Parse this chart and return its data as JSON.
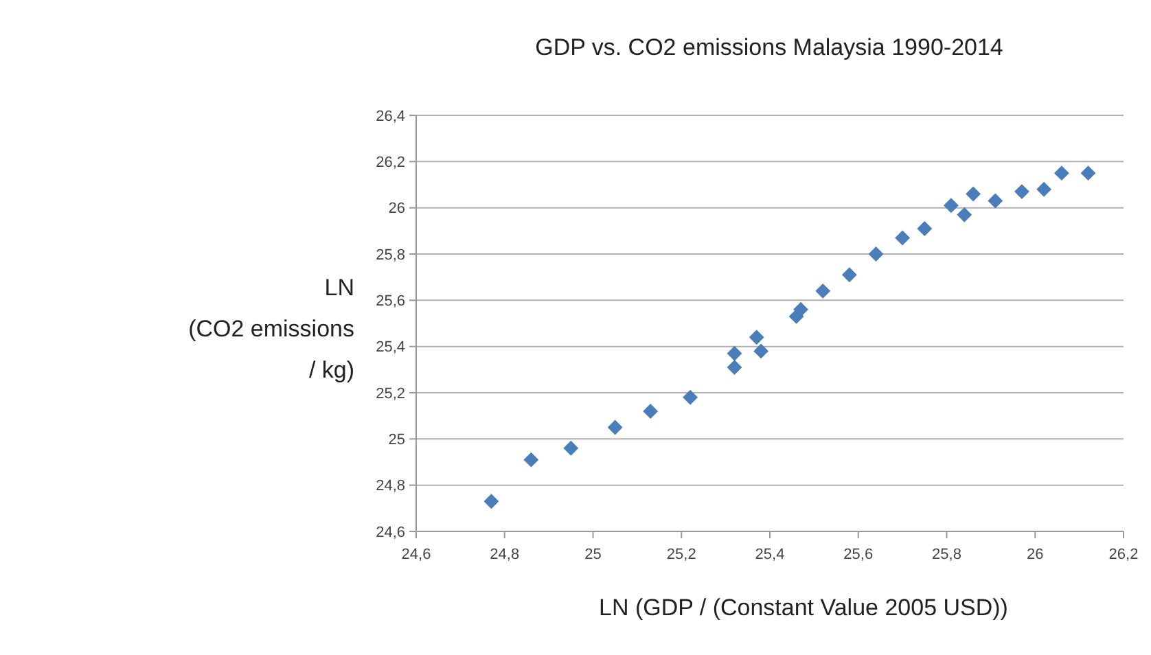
{
  "chart_data": {
    "type": "scatter",
    "title": "GDP vs. CO2 emissions Malaysia 1990-2014",
    "xlabel": "LN (GDP / (Constant Value 2005 USD))",
    "ylabel": "LN\n(CO2 emissions\n/ kg)",
    "x": [
      24.77,
      24.86,
      24.95,
      25.05,
      25.13,
      25.22,
      25.32,
      25.32,
      25.37,
      25.38,
      25.46,
      25.47,
      25.52,
      25.58,
      25.64,
      25.7,
      25.75,
      25.81,
      25.84,
      25.86,
      25.91,
      25.97,
      26.02,
      26.06,
      26.12
    ],
    "series": [
      {
        "color": "#4a7ebb",
        "values": [
          24.73,
          24.91,
          24.96,
          25.05,
          25.12,
          25.18,
          25.37,
          25.31,
          25.44,
          25.38,
          25.53,
          25.56,
          25.64,
          25.71,
          25.8,
          25.87,
          25.91,
          26.01,
          25.97,
          26.06,
          26.03,
          26.07,
          26.08,
          26.15,
          26.15
        ]
      }
    ],
    "xlim": [
      24.6,
      26.2
    ],
    "ylim": [
      24.6,
      26.4
    ],
    "xticks": [
      {
        "value": 24.6,
        "label": "24,6"
      },
      {
        "value": 24.8,
        "label": "24,8"
      },
      {
        "value": 25,
        "label": "25"
      },
      {
        "value": 25.2,
        "label": "25,2"
      },
      {
        "value": 25.4,
        "label": "25,4"
      },
      {
        "value": 25.6,
        "label": "25,6"
      },
      {
        "value": 25.8,
        "label": "25,8"
      },
      {
        "value": 26,
        "label": "26"
      },
      {
        "value": 26.2,
        "label": "26,2"
      }
    ],
    "yticks": [
      {
        "value": 24.6,
        "label": "24,6"
      },
      {
        "value": 24.8,
        "label": "24,8"
      },
      {
        "value": 25,
        "label": "25"
      },
      {
        "value": 25.2,
        "label": "25,2"
      },
      {
        "value": 25.4,
        "label": "25,4"
      },
      {
        "value": 25.6,
        "label": "25,6"
      },
      {
        "value": 25.8,
        "label": "25,8"
      },
      {
        "value": 26,
        "label": "26"
      },
      {
        "value": 26.2,
        "label": "26,2"
      },
      {
        "value": 26.4,
        "label": "26,4"
      }
    ],
    "grid": "y",
    "marker": "diamond"
  }
}
